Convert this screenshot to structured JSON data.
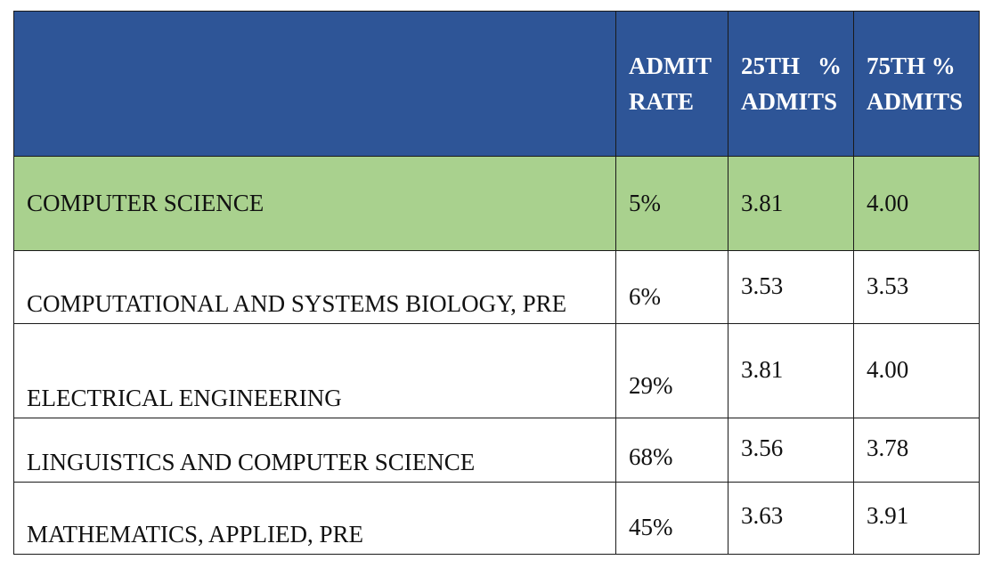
{
  "header": {
    "major": "",
    "admit_rate_line1": "ADMIT",
    "admit_rate_line2": "RATE",
    "p25_line1a": "25TH",
    "p25_line1b": "%",
    "p25_line2": "ADMITS",
    "p75_line1": "75TH %",
    "p75_line2": "ADMITS"
  },
  "rows": [
    {
      "major": "COMPUTER SCIENCE",
      "admit_rate": "5%",
      "p25": "3.81",
      "p75": "4.00"
    },
    {
      "major": "COMPUTATIONAL AND SYSTEMS BIOLOGY, PRE",
      "admit_rate": "6%",
      "p25": "3.53",
      "p75": "3.53"
    },
    {
      "major": "ELECTRICAL ENGINEERING",
      "admit_rate": "29%",
      "p25": "3.81",
      "p75": "4.00"
    },
    {
      "major": "LINGUISTICS AND COMPUTER SCIENCE",
      "admit_rate": "68%",
      "p25": "3.56",
      "p75": "3.78"
    },
    {
      "major": "MATHEMATICS, APPLIED, PRE",
      "admit_rate": "45%",
      "p25": "3.63",
      "p75": "3.91"
    }
  ],
  "colors": {
    "header_bg": "#2e5597",
    "header_text": "#ffffff",
    "highlight_row_bg": "#a9d18e",
    "border": "#1a1a1a"
  }
}
